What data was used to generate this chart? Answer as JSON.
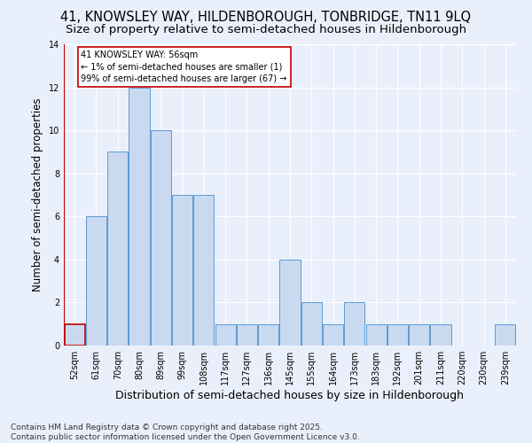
{
  "title": "41, KNOWSLEY WAY, HILDENBOROUGH, TONBRIDGE, TN11 9LQ",
  "subtitle": "Size of property relative to semi-detached houses in Hildenborough",
  "xlabel": "Distribution of semi-detached houses by size in Hildenborough",
  "ylabel": "Number of semi-detached properties",
  "bar_labels": [
    "52sqm",
    "61sqm",
    "70sqm",
    "80sqm",
    "89sqm",
    "99sqm",
    "108sqm",
    "117sqm",
    "127sqm",
    "136sqm",
    "145sqm",
    "155sqm",
    "164sqm",
    "173sqm",
    "183sqm",
    "192sqm",
    "201sqm",
    "211sqm",
    "220sqm",
    "230sqm",
    "239sqm"
  ],
  "bar_values": [
    1,
    6,
    9,
    12,
    10,
    7,
    7,
    1,
    1,
    1,
    4,
    2,
    1,
    2,
    1,
    1,
    1,
    1,
    0,
    0,
    1
  ],
  "highlight_index": 0,
  "bar_color": "#c9d9f0",
  "bar_edge_color": "#5b9bd5",
  "highlight_bar_edge_color": "#c00000",
  "annotation_text": "41 KNOWSLEY WAY: 56sqm\n← 1% of semi-detached houses are smaller (1)\n99% of semi-detached houses are larger (67) →",
  "annotation_box_color": "#ffffff",
  "annotation_box_edge_color": "#c00000",
  "vline_color": "#c00000",
  "ylim": [
    0,
    14
  ],
  "yticks": [
    0,
    2,
    4,
    6,
    8,
    10,
    12,
    14
  ],
  "footer_text": "Contains HM Land Registry data © Crown copyright and database right 2025.\nContains public sector information licensed under the Open Government Licence v3.0.",
  "background_color": "#eaf0fb",
  "plot_background_color": "#eaf0fb",
  "title_fontsize": 10.5,
  "subtitle_fontsize": 9.5,
  "tick_fontsize": 7,
  "ylabel_fontsize": 8.5,
  "xlabel_fontsize": 9,
  "footer_fontsize": 6.5
}
